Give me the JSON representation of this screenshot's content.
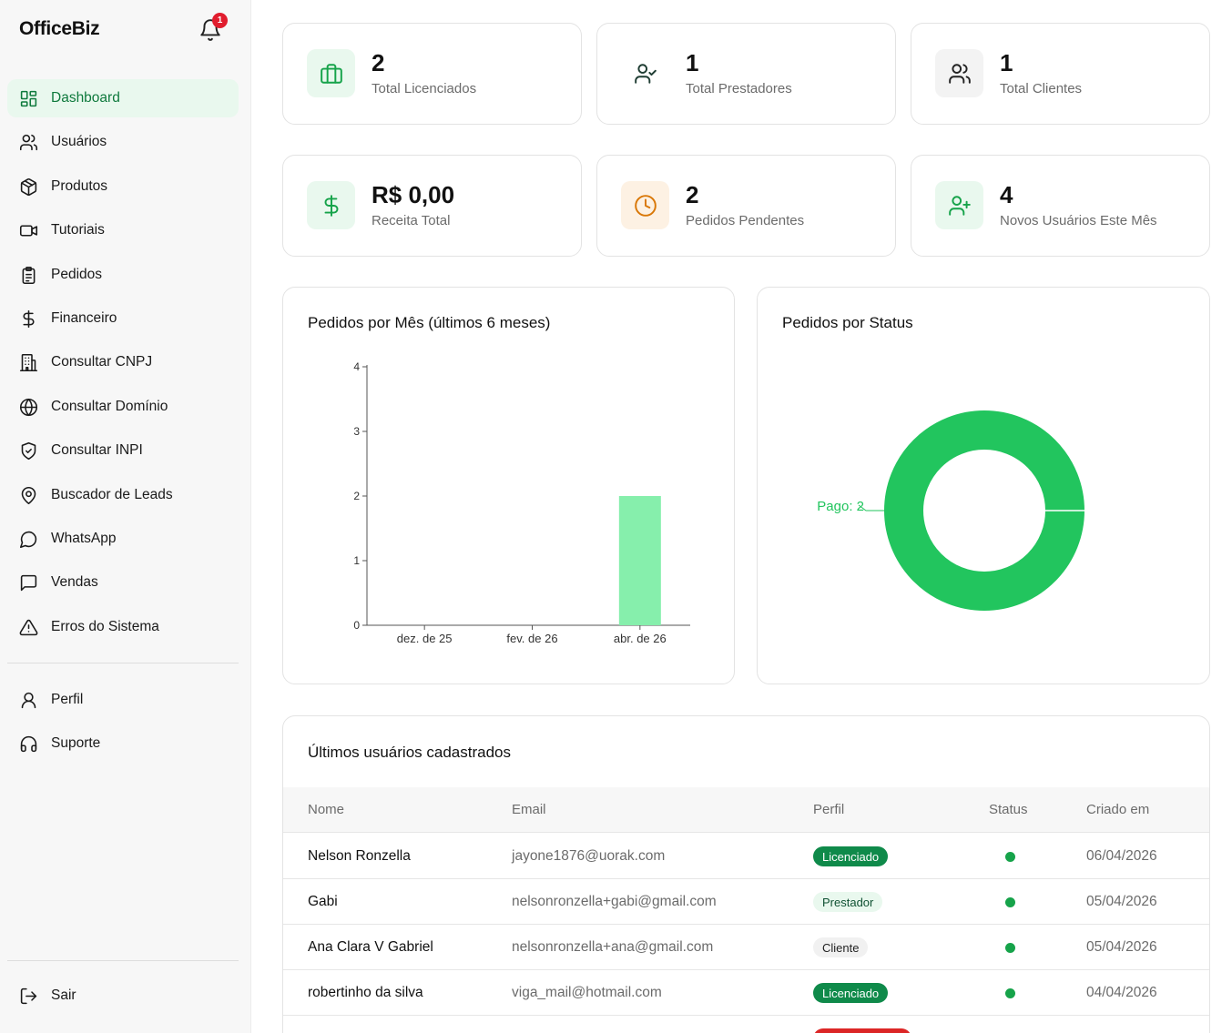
{
  "app": {
    "brand": "OfficeBiz",
    "notification_count": "1"
  },
  "sidebar": {
    "items": [
      {
        "label": "Dashboard",
        "icon": "dashboard-icon",
        "active": true
      },
      {
        "label": "Usuários",
        "icon": "users-icon"
      },
      {
        "label": "Produtos",
        "icon": "package-icon"
      },
      {
        "label": "Tutoriais",
        "icon": "video-icon"
      },
      {
        "label": "Pedidos",
        "icon": "clipboard-icon"
      },
      {
        "label": "Financeiro",
        "icon": "dollar-icon"
      },
      {
        "label": "Consultar CNPJ",
        "icon": "building-icon"
      },
      {
        "label": "Consultar Domínio",
        "icon": "globe-icon"
      },
      {
        "label": "Consultar INPI",
        "icon": "shield-icon"
      },
      {
        "label": "Buscador de Leads",
        "icon": "map-pin-icon"
      },
      {
        "label": "WhatsApp",
        "icon": "message-circle-icon"
      },
      {
        "label": "Vendas",
        "icon": "message-square-icon"
      },
      {
        "label": "Erros do Sistema",
        "icon": "alert-triangle-icon"
      }
    ],
    "secondary": [
      {
        "label": "Perfil",
        "icon": "user-icon"
      },
      {
        "label": "Suporte",
        "icon": "headphones-icon"
      }
    ],
    "logout": {
      "label": "Sair",
      "icon": "logout-icon"
    }
  },
  "stats": [
    {
      "value": "2",
      "label": "Total Licenciados",
      "icon": "briefcase-icon",
      "color": "#16a34a",
      "bg": "#e9f8ee"
    },
    {
      "value": "1",
      "label": "Total Prestadores",
      "icon": "user-check-icon",
      "color": "#1f3d33",
      "bg": "#ffffff"
    },
    {
      "value": "1",
      "label": "Total Clientes",
      "icon": "users-icon",
      "color": "#222222",
      "bg": "#f3f3f3"
    },
    {
      "value": "R$ 0,00",
      "label": "Receita Total",
      "icon": "dollar-icon",
      "color": "#16a34a",
      "bg": "#e9f8ee"
    },
    {
      "value": "2",
      "label": "Pedidos Pendentes",
      "icon": "clock-icon",
      "color": "#d97706",
      "bg": "#fdf1e3"
    },
    {
      "value": "4",
      "label": "Novos Usuários Este Mês",
      "icon": "user-plus-icon",
      "color": "#16a34a",
      "bg": "#e9f8ee"
    }
  ],
  "chart_titles": {
    "bar": "Pedidos por Mês (últimos 6 meses)",
    "donut": "Pedidos por Status"
  },
  "chart_data": [
    {
      "type": "bar",
      "title": "Pedidos por Mês (últimos 6 meses)",
      "categories": [
        "dez. de 25",
        "fev. de 26",
        "abr. de 26"
      ],
      "values": [
        0,
        0,
        2
      ],
      "ylim": [
        0,
        4
      ],
      "yticks": [
        "0",
        "1",
        "2",
        "3",
        "4"
      ],
      "color": "#86efac"
    },
    {
      "type": "pie",
      "title": "Pedidos por Status",
      "slices": [
        {
          "label": "Pago",
          "value": 2,
          "display": "Pago: 2",
          "color": "#22c55e"
        }
      ]
    }
  ],
  "users_table": {
    "title": "Últimos usuários cadastrados",
    "columns": [
      "Nome",
      "Email",
      "Perfil",
      "Status",
      "Criado em"
    ],
    "rows": [
      {
        "name": "Nelson Ronzella",
        "email": "jayone1876@uorak.com",
        "role": "Licenciado",
        "date": "06/04/2026"
      },
      {
        "name": "Gabi",
        "email": "nelsonronzella+gabi@gmail.com",
        "role": "Prestador",
        "date": "05/04/2026"
      },
      {
        "name": "Ana Clara V Gabriel",
        "email": "nelsonronzella+ana@gmail.com",
        "role": "Cliente",
        "date": "05/04/2026"
      },
      {
        "name": "robertinho da silva",
        "email": "viga_mail@hotmail.com",
        "role": "Licenciado",
        "date": "04/04/2026"
      }
    ],
    "role_colors": {
      "Licenciado": {
        "bg": "#0f8a4a",
        "fg": "#ffffff"
      },
      "Prestador": {
        "bg": "#e9f8ee",
        "fg": "#0f5132"
      },
      "Cliente": {
        "bg": "#f1f1f1",
        "fg": "#222222"
      }
    },
    "status_color": "#16a34a"
  }
}
